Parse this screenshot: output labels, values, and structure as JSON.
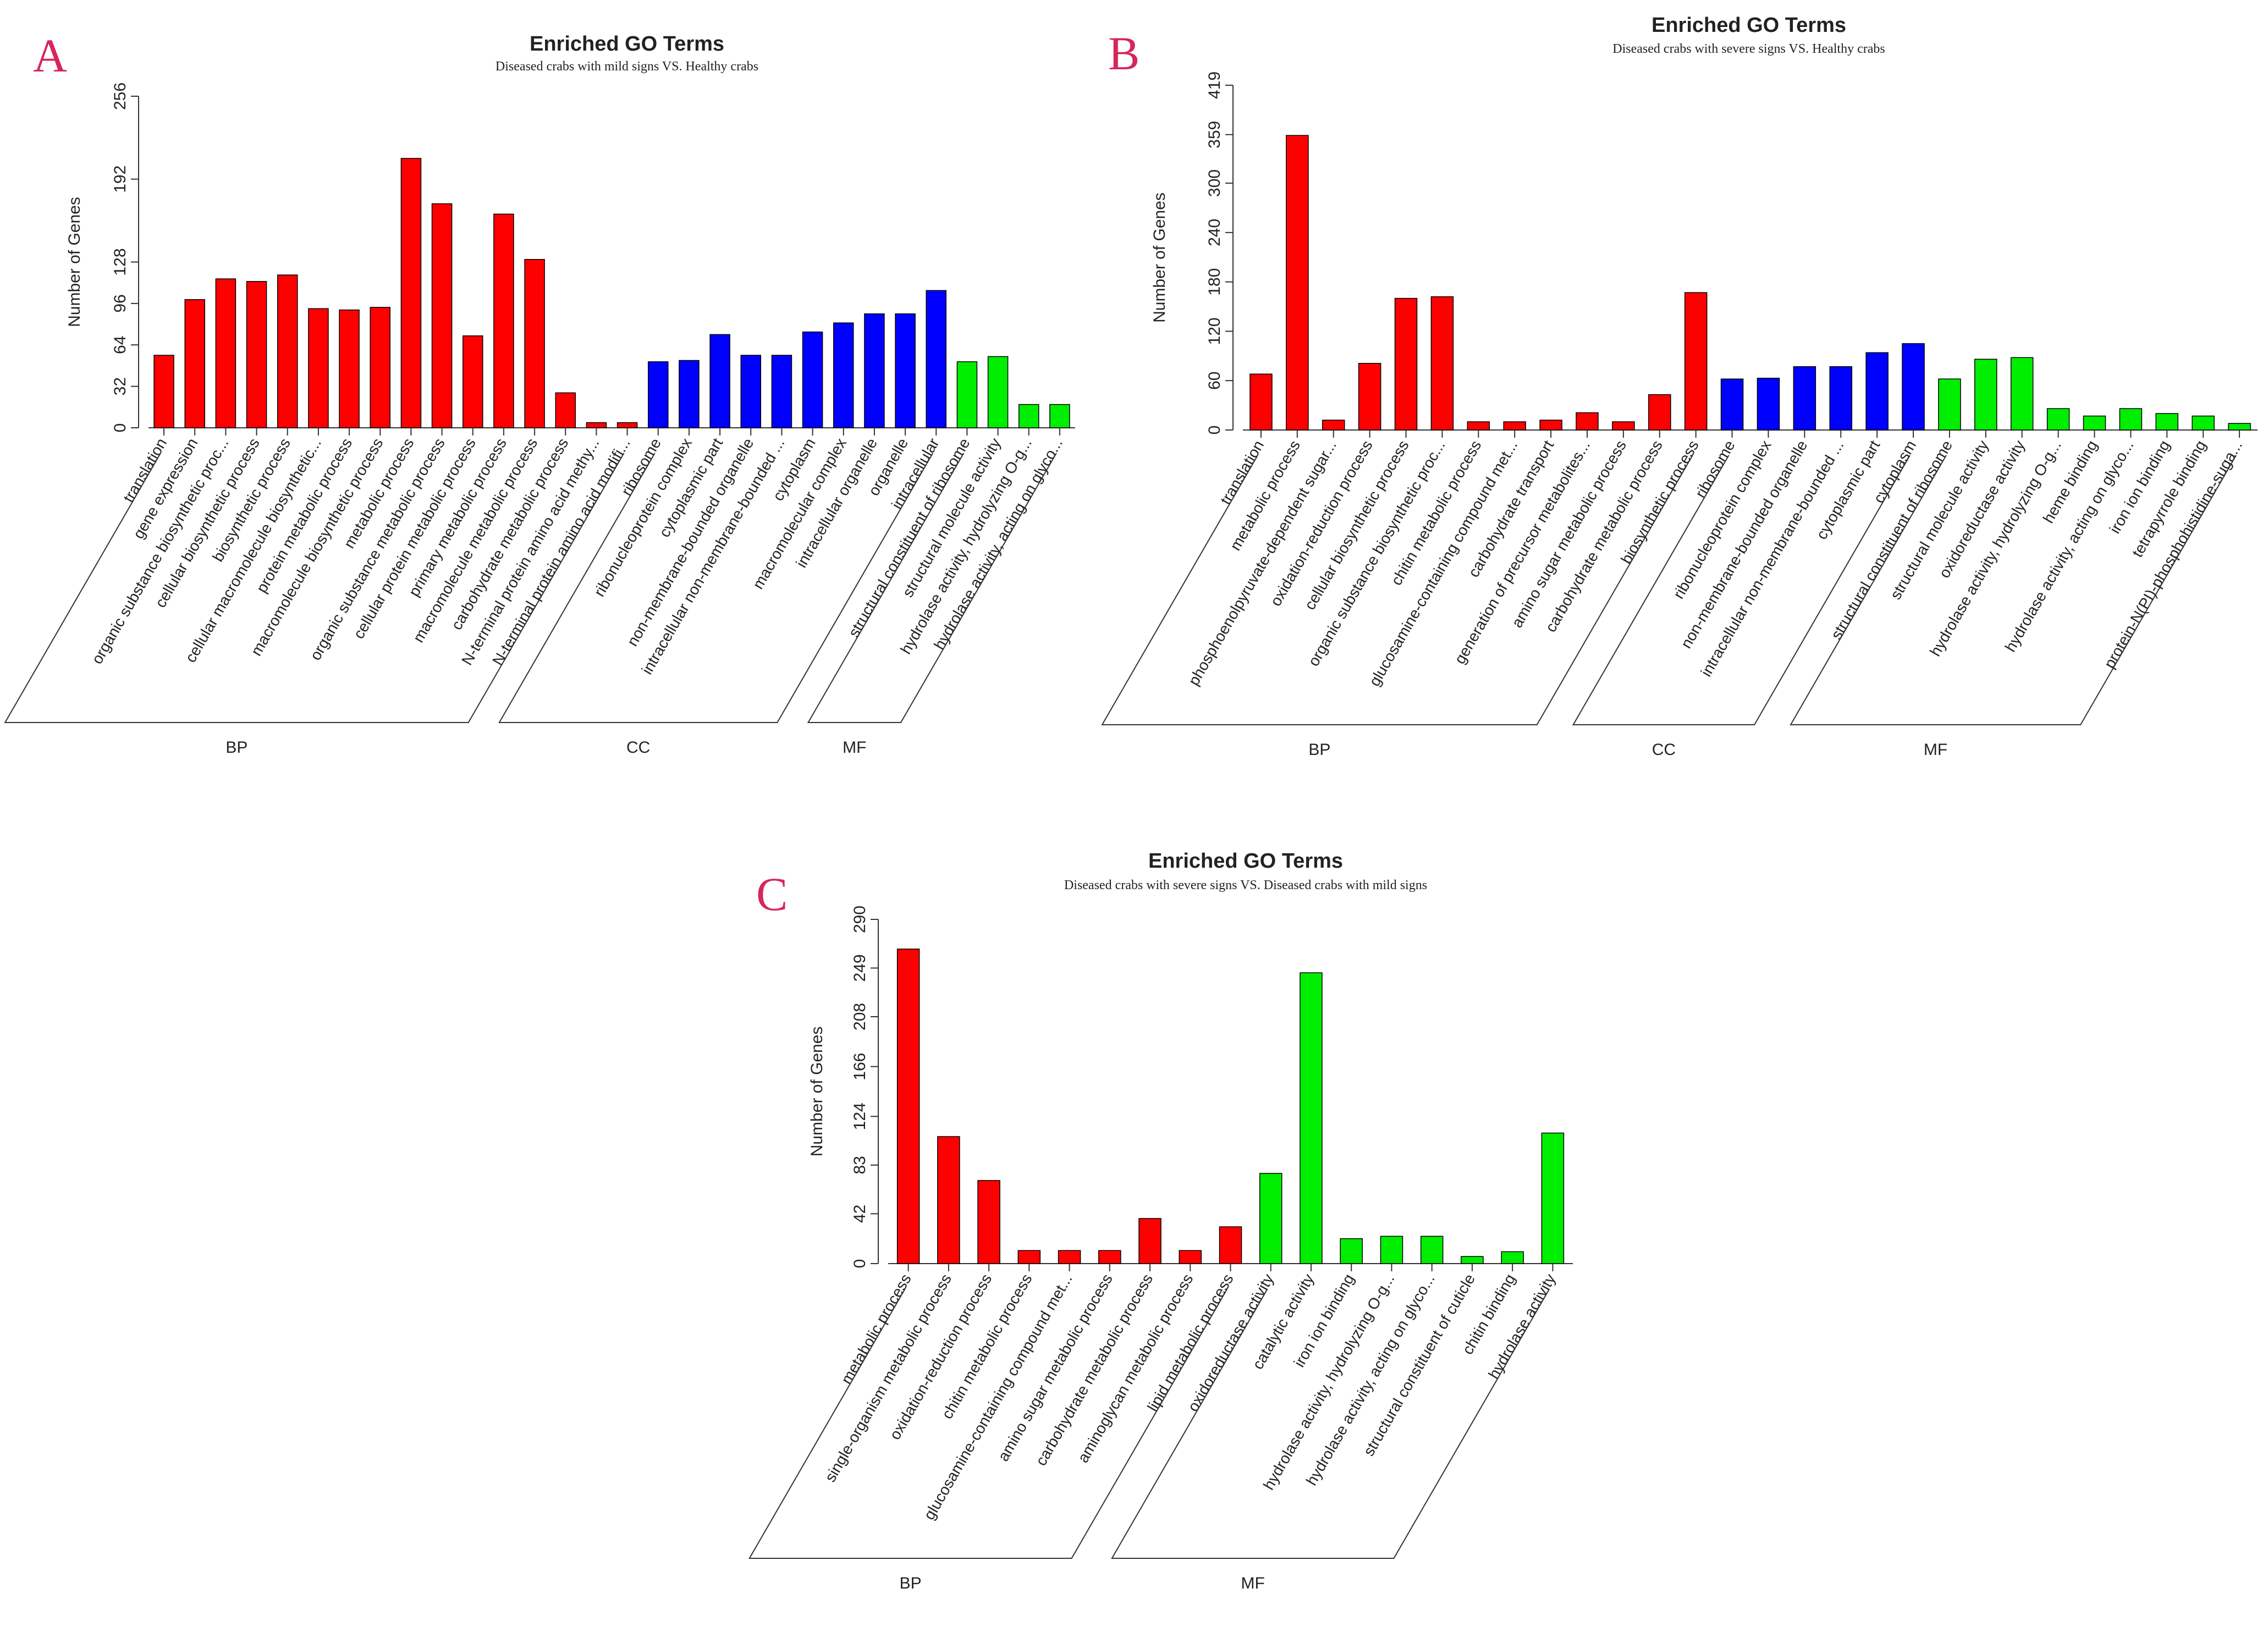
{
  "colors": {
    "BP": "#ff0000",
    "CC": "#0000ff",
    "MF": "#00ee00",
    "bar_stroke": "#000000"
  },
  "chart_data": [
    {
      "panel": "A",
      "type": "bar",
      "title": "Enriched GO Terms",
      "subtitle": "Diseased crabs with mild signs VS. Healthy crabs",
      "ylabel": "Number of Genes",
      "ylim": [
        0,
        256
      ],
      "yticks": [
        "0",
        "32",
        "64",
        "96",
        "128",
        "192",
        "256"
      ],
      "categories": [
        "translation",
        "gene expression",
        "organic substance biosynthetic proc...",
        "cellular biosynthetic process",
        "biosynthetic process",
        "cellular macromolecule biosynthetic...",
        "protein metabolic process",
        "macromolecule biosynthetic process",
        "metabolic process",
        "organic substance metabolic process",
        "cellular protein metabolic process",
        "primary metabolic process",
        "macromolecule metabolic process",
        "carbohydrate metabolic process",
        "N-terminal protein amino acid methy...",
        "N-terminal protein amino acid modifi...",
        "ribosome",
        "ribonucleoprotein complex",
        "cytoplasmic part",
        "non-membrane-bounded organelle",
        "intracellular non-membrane-bounded ...",
        "cytoplasm",
        "macromolecular complex",
        "intracellular organelle",
        "organelle",
        "intracellular",
        "structural constituent of ribosome",
        "structural molecule activity",
        "hydrolase activity, hydrolyzing O-g...",
        "hydrolase activity, acting on glyco..."
      ],
      "values": [
        56,
        99,
        115,
        113,
        118,
        92,
        91,
        93,
        208,
        173,
        71,
        165,
        130,
        27,
        4,
        4,
        51,
        52,
        72,
        56,
        56,
        74,
        81,
        88,
        88,
        106,
        51,
        55,
        18,
        18
      ],
      "groups": [
        {
          "name": "BP",
          "count": 16
        },
        {
          "name": "CC",
          "count": 10
        },
        {
          "name": "MF",
          "count": 4
        }
      ]
    },
    {
      "panel": "B",
      "type": "bar",
      "title": "Enriched GO Terms",
      "subtitle": "Diseased crabs with severe signs VS. Healthy crabs",
      "ylabel": "Number of Genes",
      "ylim": [
        0,
        419
      ],
      "yticks": [
        "0",
        "60",
        "120",
        "180",
        "240",
        "300",
        "359",
        "419"
      ],
      "categories": [
        "translation",
        "metabolic process",
        "phosphoenolpyruvate-dependent sugar...",
        "oxidation-reduction process",
        "cellular biosynthetic process",
        "organic substance biosynthetic proc...",
        "chitin metabolic process",
        "glucosamine-containing compound met...",
        "carbohydrate transport",
        "generation of precursor metabolites...",
        "amino sugar metabolic process",
        "carbohydrate metabolic process",
        "biosynthetic process",
        "ribosome",
        "ribonucleoprotein complex",
        "non-membrane-bounded organelle",
        "intracellular non-membrane-bounded ...",
        "cytoplasmic part",
        "cytoplasm",
        "structural constituent of ribosome",
        "structural molecule activity",
        "oxidoreductase activity",
        "hydrolase activity, hydrolyzing O-g...",
        "heme binding",
        "hydrolase activity, acting on glyco...",
        "iron ion binding",
        "tetrapyrrole binding",
        "protein-N(PI)-phosphohistidine-suga..."
      ],
      "values": [
        68,
        358,
        12,
        81,
        160,
        162,
        10,
        10,
        12,
        21,
        10,
        43,
        167,
        62,
        63,
        77,
        77,
        94,
        105,
        62,
        86,
        88,
        26,
        17,
        26,
        20,
        17,
        8
      ],
      "groups": [
        {
          "name": "BP",
          "count": 13
        },
        {
          "name": "CC",
          "count": 6
        },
        {
          "name": "MF",
          "count": 9
        }
      ]
    },
    {
      "panel": "C",
      "type": "bar",
      "title": "Enriched GO Terms",
      "subtitle": "Diseased crabs with severe signs VS. Diseased crabs with mild signs",
      "ylabel": "Number of Genes",
      "ylim": [
        0,
        290
      ],
      "yticks": [
        "0",
        "42",
        "83",
        "124",
        "166",
        "208",
        "249",
        "290"
      ],
      "categories": [
        "metabolic process",
        "single-organism metabolic process",
        "oxidation-reduction process",
        "chitin metabolic process",
        "glucosamine-containing compound met...",
        "amino sugar metabolic process",
        "carbohydrate metabolic process",
        "aminoglycan metabolic process",
        "lipid metabolic process",
        "oxidoreductase activity",
        "catalytic activity",
        "iron ion binding",
        "hydrolase activity, hydrolyzing O-g...",
        "hydrolase activity, acting on glyco...",
        "structural constituent of cuticle",
        "chitin binding",
        "hydrolase activity"
      ],
      "values": [
        265,
        107,
        70,
        11,
        11,
        11,
        38,
        11,
        31,
        76,
        245,
        21,
        23,
        23,
        6,
        10,
        110
      ],
      "groups": [
        {
          "name": "BP",
          "count": 9
        },
        {
          "name": "MF",
          "count": 8
        }
      ]
    }
  ]
}
